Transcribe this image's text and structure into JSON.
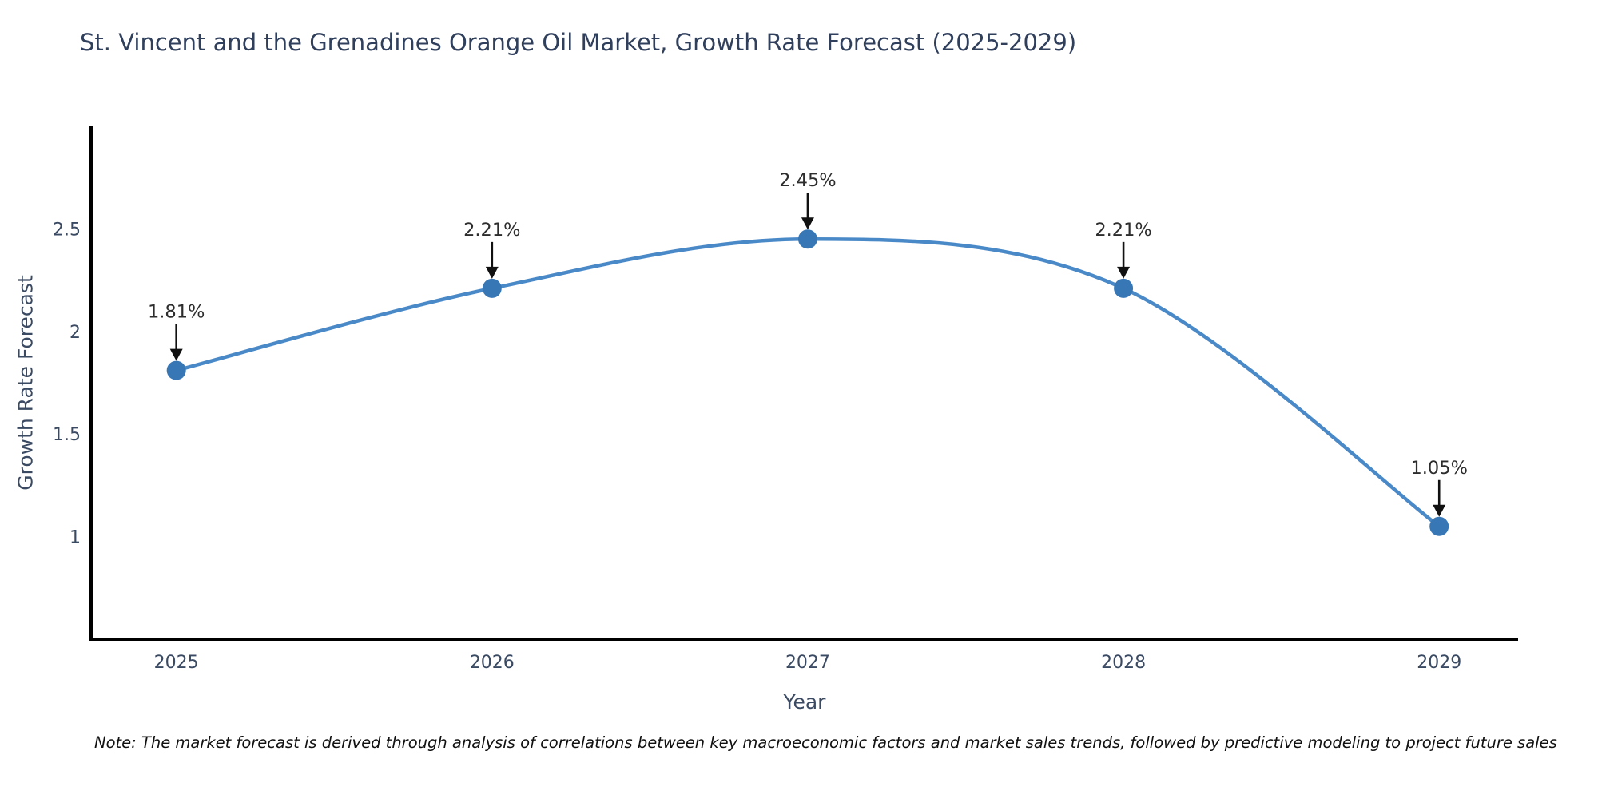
{
  "note": "Note: The market forecast is derived through analysis of correlations between key macroeconomic factors and market sales trends, followed by predictive modeling to project future sales",
  "chart_data": {
    "type": "line",
    "title": "St. Vincent and the Grenadines Orange Oil Market, Growth Rate Forecast (2025-2029)",
    "xlabel": "Year",
    "ylabel": "Growth Rate Forecast",
    "x": [
      2025,
      2026,
      2027,
      2028,
      2029
    ],
    "y": [
      1.81,
      2.21,
      2.45,
      2.21,
      1.05
    ],
    "point_labels": [
      "1.81%",
      "2.21%",
      "2.45%",
      "2.21%",
      "1.05%"
    ],
    "xtick_labels": [
      "2025",
      "2026",
      "2027",
      "2028",
      "2029"
    ],
    "yticks": [
      1,
      1.5,
      2,
      2.5
    ],
    "ytick_labels": [
      "1",
      "1.5",
      "2",
      "2.5"
    ],
    "xlim": [
      2024.73,
      2029.25
    ],
    "ylim": [
      0.5,
      3.0
    ],
    "grid": false,
    "legend": "none",
    "line_shape": "spline",
    "colors": {
      "line": "#4a89c8",
      "marker": "#3777b6",
      "spine": "#000000",
      "tick_label": "#3b4a63",
      "axis_label": "#3b4a63",
      "annotation_text": "#2d2d2d",
      "annotation_arrow": "#111111",
      "title": "#2f3f5c",
      "background": "#ffffff"
    }
  }
}
